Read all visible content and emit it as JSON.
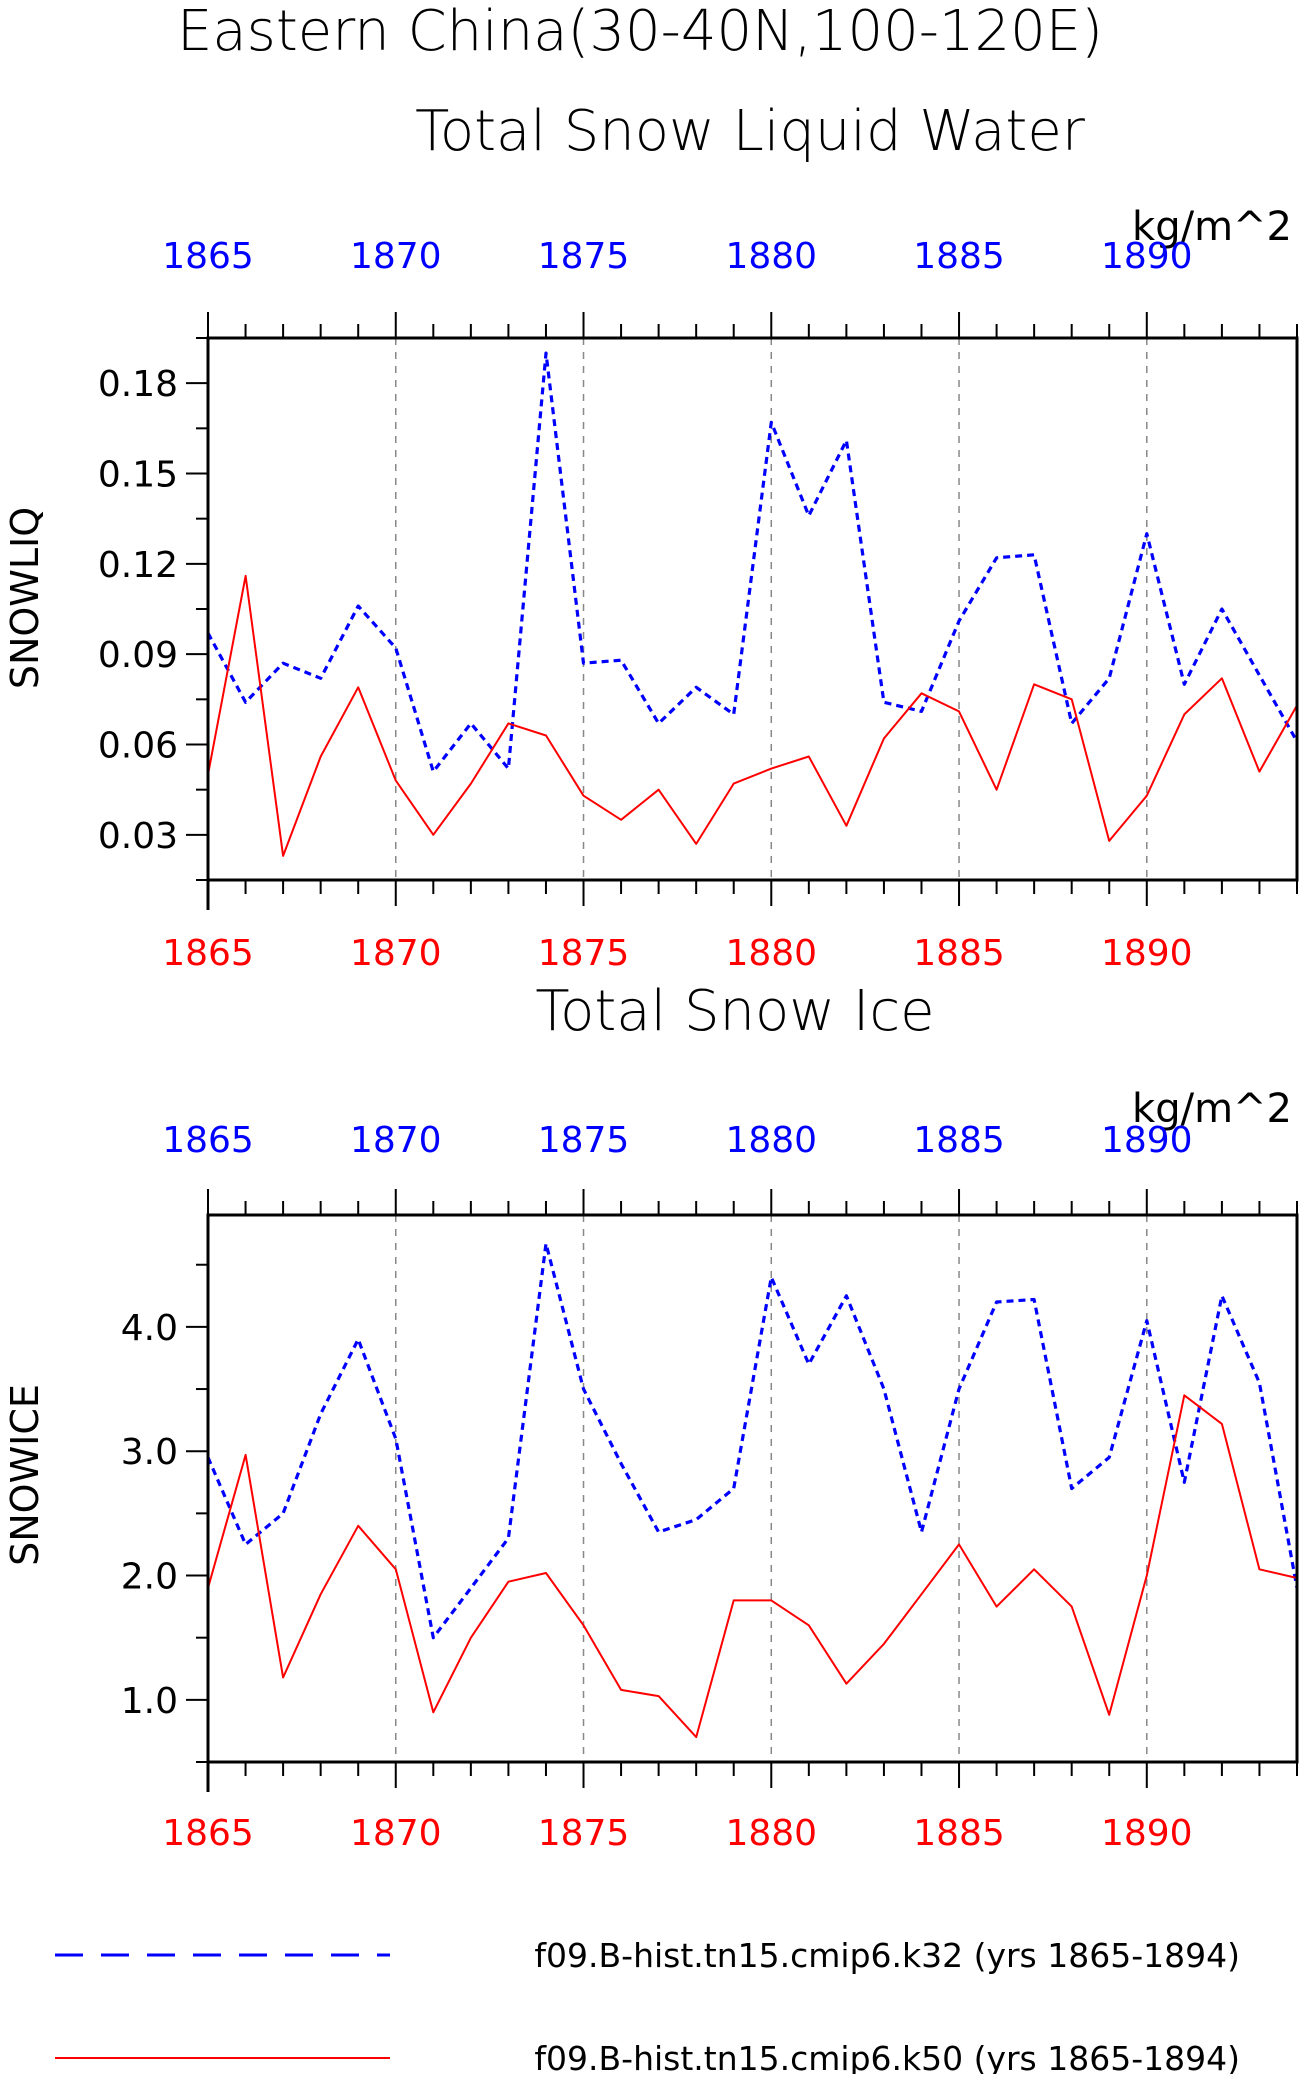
{
  "figure_title": "Eastern China(30-40N,100-120E)",
  "legend": {
    "entries": [
      {
        "label": "f09.B-hist.tn15.cmip6.k32 (yrs 1865-1894)",
        "color": "#0000ff",
        "dash": "dashed"
      },
      {
        "label": "f09.B-hist.tn15.cmip6.k50 (yrs 1865-1894)",
        "color": "#ff0000",
        "dash": "solid"
      }
    ]
  },
  "chart_data": [
    {
      "type": "line",
      "title": "Total Snow Liquid Water",
      "units": "kg/m^2",
      "ylabel": "SNOWLIQ",
      "xlim": [
        1865,
        1894
      ],
      "ylim": [
        0.015,
        0.195
      ],
      "yticks": [
        0.03,
        0.06,
        0.09,
        0.12,
        0.15,
        0.18
      ],
      "ytick_labels": [
        "0.03",
        "0.06",
        "0.09",
        "0.12",
        "0.15",
        "0.18"
      ],
      "xticks": [
        1865,
        1870,
        1875,
        1880,
        1885,
        1890
      ],
      "xtick_labels": [
        "1865",
        "1870",
        "1875",
        "1880",
        "1885",
        "1890"
      ],
      "grid": "vertical dashed at major x ticks",
      "x": [
        1865,
        1866,
        1867,
        1868,
        1869,
        1870,
        1871,
        1872,
        1873,
        1874,
        1875,
        1876,
        1877,
        1878,
        1879,
        1880,
        1881,
        1882,
        1883,
        1884,
        1885,
        1886,
        1887,
        1888,
        1889,
        1890,
        1891,
        1892,
        1893,
        1894
      ],
      "series": [
        {
          "color": "#0000ff",
          "dash": "dashed",
          "values": [
            0.097,
            0.074,
            0.087,
            0.082,
            0.106,
            0.092,
            0.051,
            0.067,
            0.052,
            0.19,
            0.087,
            0.088,
            0.067,
            0.079,
            0.07,
            0.167,
            0.136,
            0.161,
            0.074,
            0.071,
            0.101,
            0.122,
            0.123,
            0.067,
            0.082,
            0.13,
            0.08,
            0.105,
            0.083,
            0.061
          ]
        },
        {
          "color": "#ff0000",
          "dash": "solid",
          "values": [
            0.05,
            0.116,
            0.023,
            0.056,
            0.079,
            0.048,
            0.03,
            0.047,
            0.067,
            0.063,
            0.043,
            0.035,
            0.045,
            0.027,
            0.047,
            0.052,
            0.056,
            0.033,
            0.062,
            0.077,
            0.071,
            0.045,
            0.08,
            0.075,
            0.028,
            0.043,
            0.07,
            0.082,
            0.051,
            0.073
          ]
        }
      ]
    },
    {
      "type": "line",
      "title": "Total Snow Ice",
      "units": "kg/m^2",
      "ylabel": "SNOWICE",
      "xlim": [
        1865,
        1894
      ],
      "ylim": [
        0.5,
        4.9
      ],
      "yticks": [
        1.0,
        2.0,
        3.0,
        4.0
      ],
      "ytick_labels": [
        "1.0",
        "2.0",
        "3.0",
        "4.0"
      ],
      "xticks": [
        1865,
        1870,
        1875,
        1880,
        1885,
        1890
      ],
      "xtick_labels": [
        "1865",
        "1870",
        "1875",
        "1880",
        "1885",
        "1890"
      ],
      "grid": "vertical dashed at major x ticks",
      "x": [
        1865,
        1866,
        1867,
        1868,
        1869,
        1870,
        1871,
        1872,
        1873,
        1874,
        1875,
        1876,
        1877,
        1878,
        1879,
        1880,
        1881,
        1882,
        1883,
        1884,
        1885,
        1886,
        1887,
        1888,
        1889,
        1890,
        1891,
        1892,
        1893,
        1894
      ],
      "series": [
        {
          "color": "#0000ff",
          "dash": "dashed",
          "values": [
            2.95,
            2.25,
            2.5,
            3.3,
            3.9,
            3.1,
            1.5,
            1.9,
            2.3,
            4.67,
            3.5,
            2.9,
            2.35,
            2.45,
            2.7,
            4.4,
            3.7,
            4.25,
            3.5,
            2.35,
            3.5,
            4.2,
            4.22,
            2.7,
            2.95,
            4.05,
            2.75,
            4.25,
            3.55,
            1.9
          ]
        },
        {
          "color": "#ff0000",
          "dash": "solid",
          "values": [
            1.9,
            2.97,
            1.18,
            1.85,
            2.4,
            2.05,
            0.9,
            1.5,
            1.95,
            2.02,
            1.6,
            1.08,
            1.03,
            0.7,
            1.8,
            1.8,
            1.6,
            1.13,
            1.45,
            1.85,
            2.25,
            1.75,
            2.05,
            1.75,
            0.88,
            2.0,
            3.45,
            3.22,
            2.05,
            1.98
          ]
        }
      ]
    }
  ]
}
